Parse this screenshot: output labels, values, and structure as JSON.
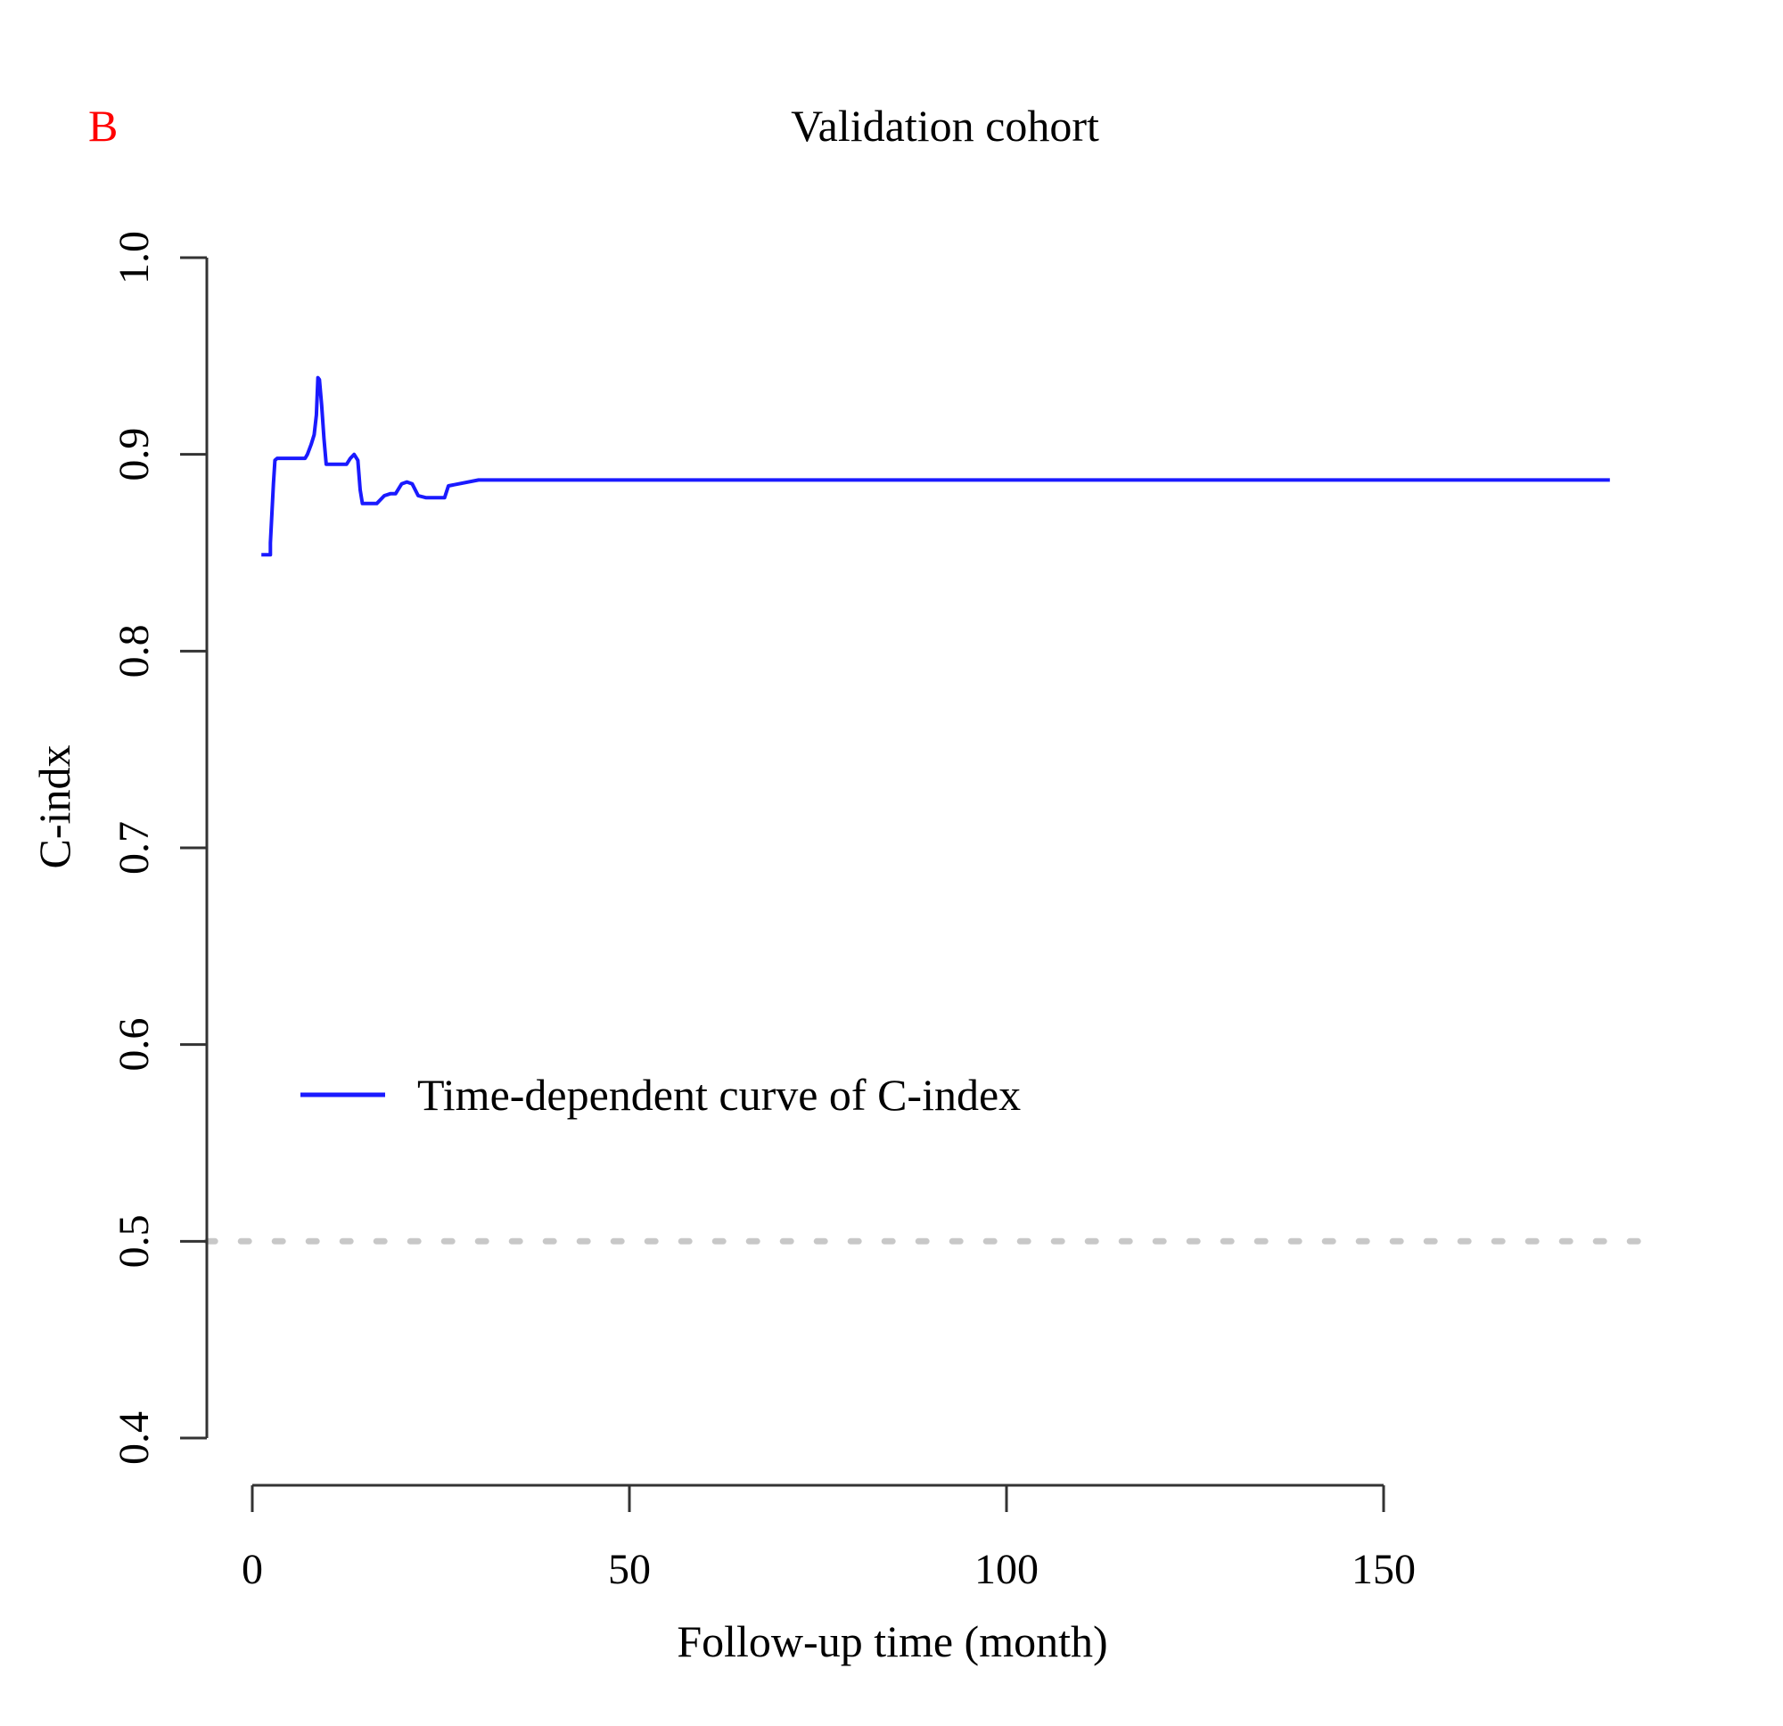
{
  "panel_label": "B",
  "chart_data": {
    "type": "line",
    "title": "Validation cohort",
    "xlabel": "Follow-up time (month)",
    "ylabel": "C-indx",
    "xlim": [
      0,
      150
    ],
    "ylim": [
      0.4,
      1.0
    ],
    "xticks": [
      0,
      50,
      100,
      150
    ],
    "xtick_labels": [
      "0",
      "50",
      "100",
      "150"
    ],
    "yticks": [
      0.4,
      0.5,
      0.6,
      0.7,
      0.8,
      0.9,
      1.0
    ],
    "ytick_labels": [
      "0.4",
      "0.5",
      "0.6",
      "0.7",
      "0.8",
      "0.9",
      "1.0"
    ],
    "grid": false,
    "legend": {
      "position": "center-left"
    },
    "series": [
      {
        "name": "Time-dependent curve of C-index",
        "color": "#1a1aff",
        "x": [
          1.2,
          2.4,
          2.4,
          2.6,
          2.8,
          3.0,
          3.3,
          3.6,
          4.0,
          5.0,
          6.0,
          7.0,
          7.3,
          7.8,
          8.2,
          8.5,
          8.7,
          8.9,
          9.2,
          9.5,
          9.8,
          10.3,
          11.0,
          11.8,
          12.5,
          13.0,
          13.5,
          14.0,
          14.3,
          14.6,
          15.0,
          15.5,
          16.5,
          17.5,
          18.3,
          19.0,
          19.8,
          20.5,
          21.2,
          22.0,
          23.0,
          24.0,
          25.0,
          25.5,
          26.0,
          30.0,
          40.0,
          60.0,
          90.0,
          120.0,
          150.0,
          180.0
        ],
        "y": [
          0.849,
          0.849,
          0.855,
          0.87,
          0.885,
          0.897,
          0.898,
          0.898,
          0.898,
          0.898,
          0.898,
          0.898,
          0.9,
          0.905,
          0.91,
          0.92,
          0.939,
          0.938,
          0.925,
          0.908,
          0.895,
          0.895,
          0.895,
          0.895,
          0.895,
          0.898,
          0.9,
          0.897,
          0.882,
          0.875,
          0.875,
          0.875,
          0.875,
          0.879,
          0.88,
          0.88,
          0.885,
          0.886,
          0.885,
          0.879,
          0.878,
          0.878,
          0.878,
          0.878,
          0.884,
          0.887,
          0.887,
          0.887,
          0.887,
          0.887,
          0.887,
          0.887
        ]
      },
      {
        "color": "#c8c8c8",
        "x": [
          -6.0,
          186.0
        ],
        "y": [
          0.5,
          0.5
        ]
      }
    ]
  }
}
